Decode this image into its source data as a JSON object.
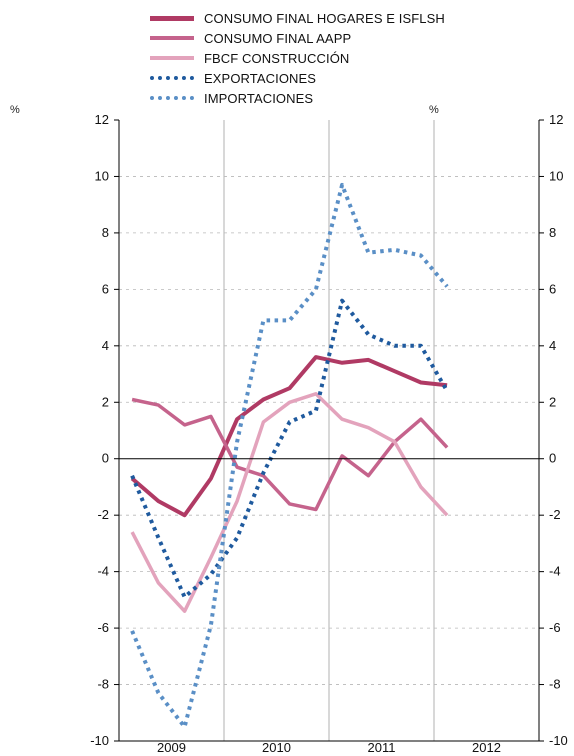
{
  "chart_data": {
    "type": "line",
    "y_unit_left": "%",
    "y_unit_right": "%",
    "ylim": [
      -10,
      12
    ],
    "y_ticks": [
      -10,
      -8,
      -6,
      -4,
      -2,
      0,
      2,
      4,
      6,
      8,
      10,
      12
    ],
    "years": [
      "2009",
      "2010",
      "2011",
      "2012"
    ],
    "quarters_per_year": 4,
    "grid": "horizontal dashed, vertical solid at year boundaries",
    "legend_placement": "top",
    "series": [
      {
        "name": "CONSUMO FINAL HOGARES E ISFLSH",
        "color": "#b03a64",
        "style": "solid-thick",
        "values": [
          -0.7,
          -1.5,
          -2.0,
          -0.7,
          1.4,
          2.1,
          2.5,
          3.6,
          3.4,
          3.5,
          3.1,
          2.7,
          2.6
        ]
      },
      {
        "name": "CONSUMO FINAL AAPP",
        "color": "#c5638c",
        "style": "solid",
        "values": [
          2.1,
          1.9,
          1.2,
          1.5,
          -0.3,
          -0.6,
          -1.6,
          -1.8,
          0.1,
          -0.6,
          0.6,
          1.4,
          0.4
        ]
      },
      {
        "name": "FBCF CONSTRUCCIÓN",
        "color": "#e3a3bc",
        "style": "solid",
        "values": [
          -2.6,
          -4.4,
          -5.4,
          -3.5,
          -1.5,
          1.3,
          2.0,
          2.3,
          1.4,
          1.1,
          0.6,
          -1.0,
          -2.0
        ]
      },
      {
        "name": "EXPORTACIONES",
        "color": "#1f5a9e",
        "style": "dotted",
        "values": [
          -0.6,
          -2.8,
          -4.9,
          -4.1,
          -2.8,
          -0.5,
          1.3,
          1.7,
          5.6,
          4.4,
          4.0,
          4.0,
          2.4
        ]
      },
      {
        "name": "IMPORTACIONES",
        "color": "#5a8fc6",
        "style": "dotted",
        "values": [
          -6.1,
          -8.3,
          -9.5,
          -5.9,
          0.6,
          4.9,
          4.9,
          6.0,
          9.7,
          7.3,
          7.4,
          7.2,
          6.1
        ]
      }
    ]
  }
}
